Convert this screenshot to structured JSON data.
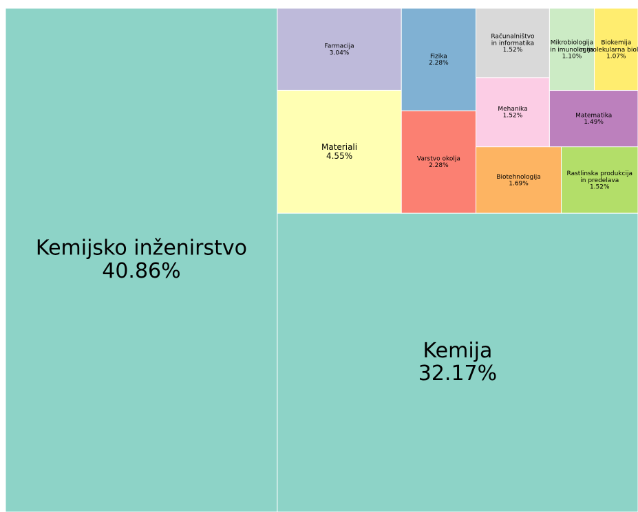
{
  "chart_data": {
    "type": "treemap",
    "categories": [
      "Kemijsko inženirstvo",
      "Kemija",
      "Materiali",
      "Farmacija",
      "Varstvo okolja",
      "Fizika",
      "Biotehnologija",
      "Rastlinska produkcija\nin predelava",
      "Mehanika",
      "Računalništvo\nin informatika",
      "Matematika",
      "Mikrobiologija\nin imunologija",
      "Biokemija\nin molekularna biologija"
    ],
    "values": [
      40.86,
      32.17,
      4.55,
      3.04,
      2.28,
      2.28,
      1.69,
      1.52,
      1.52,
      1.52,
      1.49,
      1.1,
      1.07
    ],
    "value_labels": [
      "40.86%",
      "32.17%",
      "4.55%",
      "3.04%",
      "2.28%",
      "2.28%",
      "1.69%",
      "1.52%",
      "1.52%",
      "1.52%",
      "1.49%",
      "1.10%",
      "1.07%"
    ],
    "colors": [
      "#8dd3c7",
      "#8dd3c7",
      "#ffffb3",
      "#bebada",
      "#fb8072",
      "#80b1d3",
      "#fdb462",
      "#b3de69",
      "#fccde5",
      "#d9d9d9",
      "#bc80bd",
      "#ccebc5",
      "#ffed6f"
    ]
  }
}
